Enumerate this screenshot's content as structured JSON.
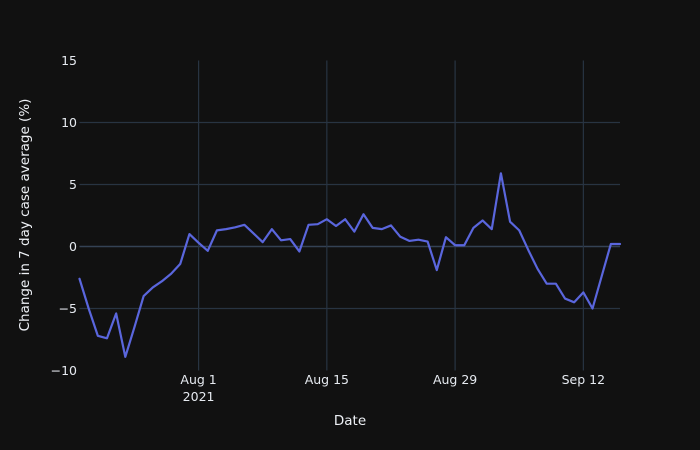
{
  "window": {
    "background_color": "#111111"
  },
  "chart_data": {
    "type": "line",
    "title": "",
    "xlabel": "Date",
    "ylabel": "Change in 7 day case average (%)",
    "series": [
      {
        "name": "change-in-7-day-case-average-pct",
        "x": [
          "2021-07-19",
          "2021-07-20",
          "2021-07-21",
          "2021-07-22",
          "2021-07-23",
          "2021-07-24",
          "2021-07-25",
          "2021-07-26",
          "2021-07-27",
          "2021-07-28",
          "2021-07-29",
          "2021-07-30",
          "2021-07-31",
          "2021-08-01",
          "2021-08-02",
          "2021-08-03",
          "2021-08-04",
          "2021-08-05",
          "2021-08-06",
          "2021-08-07",
          "2021-08-08",
          "2021-08-09",
          "2021-08-10",
          "2021-08-11",
          "2021-08-12",
          "2021-08-13",
          "2021-08-14",
          "2021-08-15",
          "2021-08-16",
          "2021-08-17",
          "2021-08-18",
          "2021-08-19",
          "2021-08-20",
          "2021-08-21",
          "2021-08-22",
          "2021-08-23",
          "2021-08-24",
          "2021-08-25",
          "2021-08-26",
          "2021-08-27",
          "2021-08-28",
          "2021-08-29",
          "2021-08-30",
          "2021-08-31",
          "2021-09-01",
          "2021-09-02",
          "2021-09-03",
          "2021-09-04",
          "2021-09-05",
          "2021-09-06",
          "2021-09-07",
          "2021-09-08",
          "2021-09-09",
          "2021-09-10",
          "2021-09-11",
          "2021-09-12",
          "2021-09-13",
          "2021-09-14",
          "2021-09-15",
          "2021-09-16"
        ],
        "values": [
          -2.6,
          -5.0,
          -7.2,
          -7.4,
          -5.4,
          -8.9,
          -6.5,
          -4.0,
          -3.3,
          -2.8,
          -2.2,
          -1.4,
          1.0,
          0.3,
          -0.35,
          1.3,
          1.4,
          1.55,
          1.75,
          1.05,
          0.35,
          1.4,
          0.5,
          0.6,
          -0.4,
          1.75,
          1.8,
          2.2,
          1.65,
          2.2,
          1.2,
          2.6,
          1.5,
          1.4,
          1.7,
          0.8,
          0.45,
          0.55,
          0.4,
          -1.9,
          0.75,
          0.1,
          0.1,
          1.5,
          2.1,
          1.4,
          5.9,
          2.0,
          1.3,
          -0.3,
          -1.8,
          -3.0,
          -3.0,
          -4.2,
          -4.5,
          -3.7,
          -5.0,
          -2.4,
          0.2,
          0.2
        ]
      }
    ],
    "ylim": [
      -10,
      15
    ],
    "yticks": [
      {
        "label": "15",
        "value": 15
      },
      {
        "label": "10",
        "value": 10
      },
      {
        "label": "5",
        "value": 5
      },
      {
        "label": "0",
        "value": 0
      },
      {
        "label": "−5",
        "value": -5
      },
      {
        "label": "−10",
        "value": -10
      }
    ],
    "xticks": [
      {
        "label": "Aug 1",
        "sublabel": "2021",
        "date": "2021-08-01"
      },
      {
        "label": "Aug 15",
        "sublabel": "",
        "date": "2021-08-15"
      },
      {
        "label": "Aug 29",
        "sublabel": "",
        "date": "2021-08-29"
      },
      {
        "label": "Sep 12",
        "sublabel": "",
        "date": "2021-09-12"
      }
    ],
    "grid": true,
    "grid_y_values": [
      10,
      5,
      0,
      -5
    ],
    "legend_position": "none",
    "colors": {
      "line": "#5a66dd",
      "grid": "#283442",
      "zero_line": "#344254",
      "background": "#111111",
      "tick_text": "#e6eaf0",
      "axis_title_text": "#eef1f6"
    }
  }
}
